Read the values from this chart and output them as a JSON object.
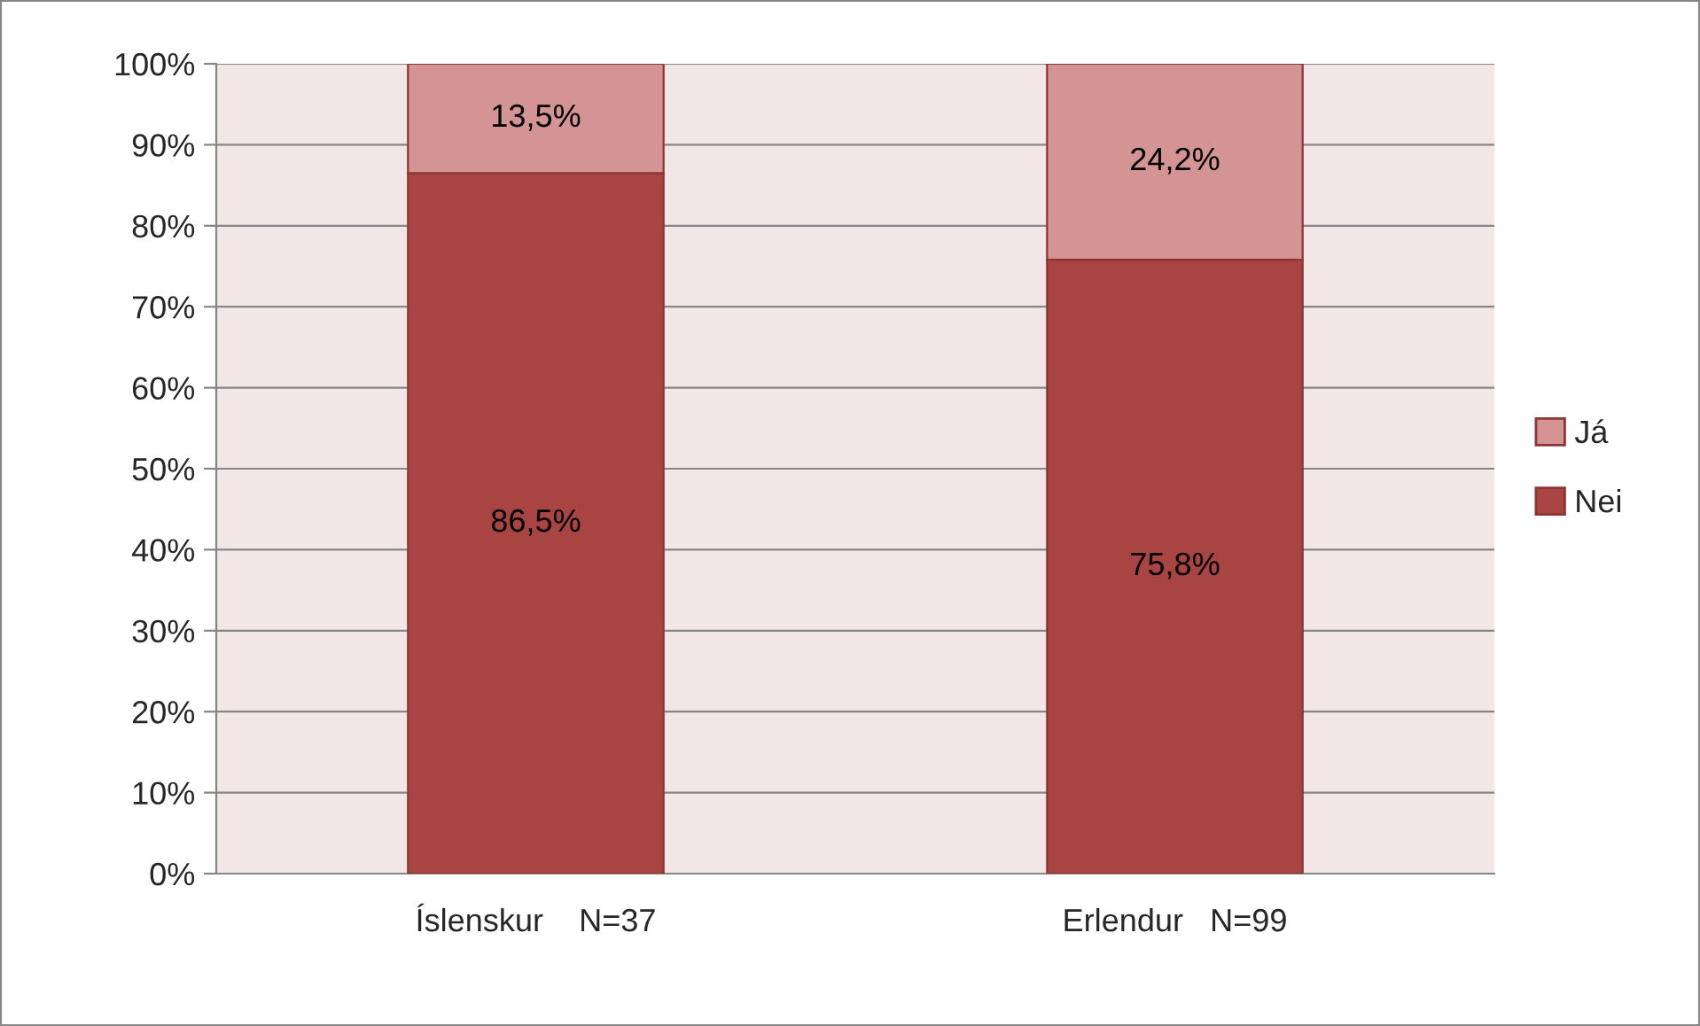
{
  "chart_data": {
    "type": "bar",
    "stacked": true,
    "categories": [
      "Íslenskur    N=37",
      "Erlendur   N=99"
    ],
    "series": [
      {
        "name": "Nei",
        "color": "#a84442",
        "values": [
          86.5,
          75.8
        ],
        "value_labels": [
          "86,5%",
          "75,8%"
        ]
      },
      {
        "name": "Já",
        "color": "#d49493",
        "values": [
          13.5,
          24.2
        ],
        "value_labels": [
          "13,5%",
          "24,2%"
        ]
      }
    ],
    "ylim": [
      0,
      100
    ],
    "yticks": [
      {
        "value": 0,
        "label": "0%"
      },
      {
        "value": 10,
        "label": "10%"
      },
      {
        "value": 20,
        "label": "20%"
      },
      {
        "value": 30,
        "label": "30%"
      },
      {
        "value": 40,
        "label": "40%"
      },
      {
        "value": 50,
        "label": "50%"
      },
      {
        "value": 60,
        "label": "60%"
      },
      {
        "value": 70,
        "label": "70%"
      },
      {
        "value": 80,
        "label": "80%"
      },
      {
        "value": 90,
        "label": "90%"
      },
      {
        "value": 100,
        "label": "100%"
      }
    ],
    "grid": "y",
    "legend": "right"
  }
}
